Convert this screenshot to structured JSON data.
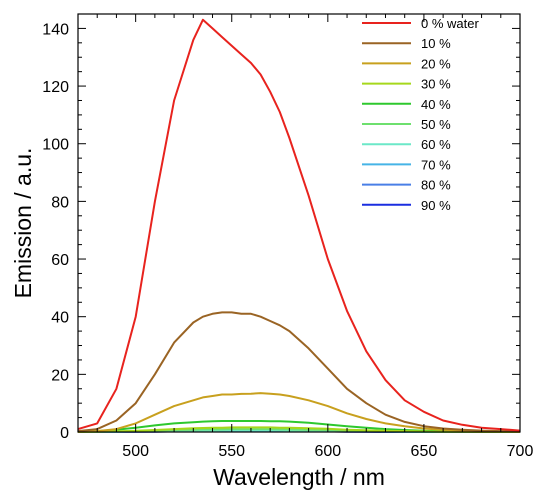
{
  "chart_data": {
    "type": "line",
    "xlabel": "Wavelength / nm",
    "ylabel": "Emission / a.u.",
    "xlim": [
      470,
      700
    ],
    "ylim": [
      0,
      145
    ],
    "xticks": [
      500,
      550,
      600,
      650,
      700
    ],
    "yticks": [
      0,
      20,
      40,
      60,
      80,
      100,
      120,
      140
    ],
    "x_tick_labels": [
      "500",
      "550",
      "600",
      "650",
      "700"
    ],
    "y_tick_labels": [
      "0",
      "20",
      "40",
      "60",
      "80",
      "100",
      "120",
      "140"
    ],
    "grid": false,
    "legend_position": "top-right",
    "x": [
      470,
      480,
      490,
      500,
      510,
      520,
      530,
      535,
      540,
      545,
      550,
      555,
      560,
      565,
      570,
      575,
      580,
      590,
      600,
      610,
      620,
      630,
      640,
      650,
      660,
      670,
      680,
      690,
      700
    ],
    "series": [
      {
        "name": " 0 % water",
        "color": "#e8231e",
        "values": [
          1,
          3,
          15,
          40,
          80,
          115,
          136,
          143,
          140,
          137,
          134,
          131,
          128,
          124,
          118,
          111,
          102,
          82,
          60,
          42,
          28,
          18,
          11,
          7,
          4,
          2.5,
          1.5,
          1,
          0.5
        ]
      },
      {
        "name": "10 %",
        "color": "#9a6424",
        "values": [
          0.3,
          1,
          4,
          10,
          20,
          31,
          38,
          40,
          41,
          41.5,
          41.5,
          41,
          41,
          40,
          38.5,
          37,
          35,
          29,
          22,
          15,
          10,
          6,
          3.5,
          2,
          1.2,
          0.8,
          0.5,
          0.3,
          0.2
        ]
      },
      {
        "name": "20 %",
        "color": "#c8a01e",
        "values": [
          0.1,
          0.3,
          1,
          3,
          6,
          9,
          11,
          12,
          12.5,
          13,
          13,
          13.2,
          13.3,
          13.5,
          13.3,
          13,
          12.5,
          11,
          9,
          6.5,
          4.5,
          3,
          2,
          1.2,
          0.8,
          0.5,
          0.3,
          0.2,
          0.1
        ]
      },
      {
        "name": "30 %",
        "color": "#a6d81c",
        "values": [
          0,
          0.1,
          0.2,
          0.4,
          0.7,
          1,
          1.3,
          1.4,
          1.5,
          1.5,
          1.6,
          1.6,
          1.6,
          1.6,
          1.6,
          1.5,
          1.5,
          1.3,
          1.1,
          0.8,
          0.6,
          0.4,
          0.3,
          0.2,
          0.1,
          0.1,
          0,
          0,
          0
        ]
      },
      {
        "name": "40 %",
        "color": "#2ec82e",
        "values": [
          0.1,
          0.3,
          0.8,
          1.5,
          2.3,
          3,
          3.4,
          3.6,
          3.7,
          3.8,
          3.8,
          3.8,
          3.8,
          3.8,
          3.7,
          3.7,
          3.6,
          3.2,
          2.6,
          2,
          1.5,
          1,
          0.7,
          0.4,
          0.3,
          0.2,
          0.1,
          0.1,
          0
        ]
      },
      {
        "name": "50 %",
        "color": "#6ee06e",
        "values": [
          0,
          0.1,
          0.2,
          0.3,
          0.5,
          0.7,
          0.8,
          0.9,
          0.9,
          0.9,
          1,
          1,
          1,
          1,
          1,
          0.9,
          0.9,
          0.8,
          0.7,
          0.5,
          0.4,
          0.3,
          0.2,
          0.1,
          0.1,
          0,
          0,
          0,
          0
        ]
      },
      {
        "name": "60 %",
        "color": "#6ce8c8",
        "values": [
          0,
          0.1,
          0.1,
          0.2,
          0.3,
          0.4,
          0.5,
          0.5,
          0.5,
          0.6,
          0.6,
          0.6,
          0.6,
          0.6,
          0.6,
          0.6,
          0.5,
          0.5,
          0.4,
          0.3,
          0.2,
          0.2,
          0.1,
          0.1,
          0,
          0,
          0,
          0,
          0
        ]
      },
      {
        "name": "70 %",
        "color": "#46b4e6",
        "values": [
          0,
          0.1,
          0.1,
          0.2,
          0.3,
          0.4,
          0.4,
          0.4,
          0.5,
          0.5,
          0.5,
          0.5,
          0.5,
          0.5,
          0.5,
          0.5,
          0.4,
          0.4,
          0.3,
          0.2,
          0.2,
          0.1,
          0.1,
          0,
          0,
          0,
          0,
          0,
          0
        ]
      },
      {
        "name": "80 %",
        "color": "#4a7fe6",
        "values": [
          0,
          0,
          0.1,
          0.1,
          0.2,
          0.3,
          0.3,
          0.3,
          0.3,
          0.4,
          0.4,
          0.4,
          0.4,
          0.4,
          0.4,
          0.3,
          0.3,
          0.3,
          0.2,
          0.2,
          0.1,
          0.1,
          0,
          0,
          0,
          0,
          0,
          0,
          0
        ]
      },
      {
        "name": "90 %",
        "color": "#1a2ee0",
        "values": [
          0,
          0,
          0.1,
          0.1,
          0.1,
          0.2,
          0.2,
          0.2,
          0.2,
          0.3,
          0.3,
          0.3,
          0.3,
          0.3,
          0.3,
          0.2,
          0.2,
          0.2,
          0.2,
          0.1,
          0.1,
          0,
          0,
          0,
          0,
          0,
          0,
          0,
          0
        ]
      }
    ]
  }
}
